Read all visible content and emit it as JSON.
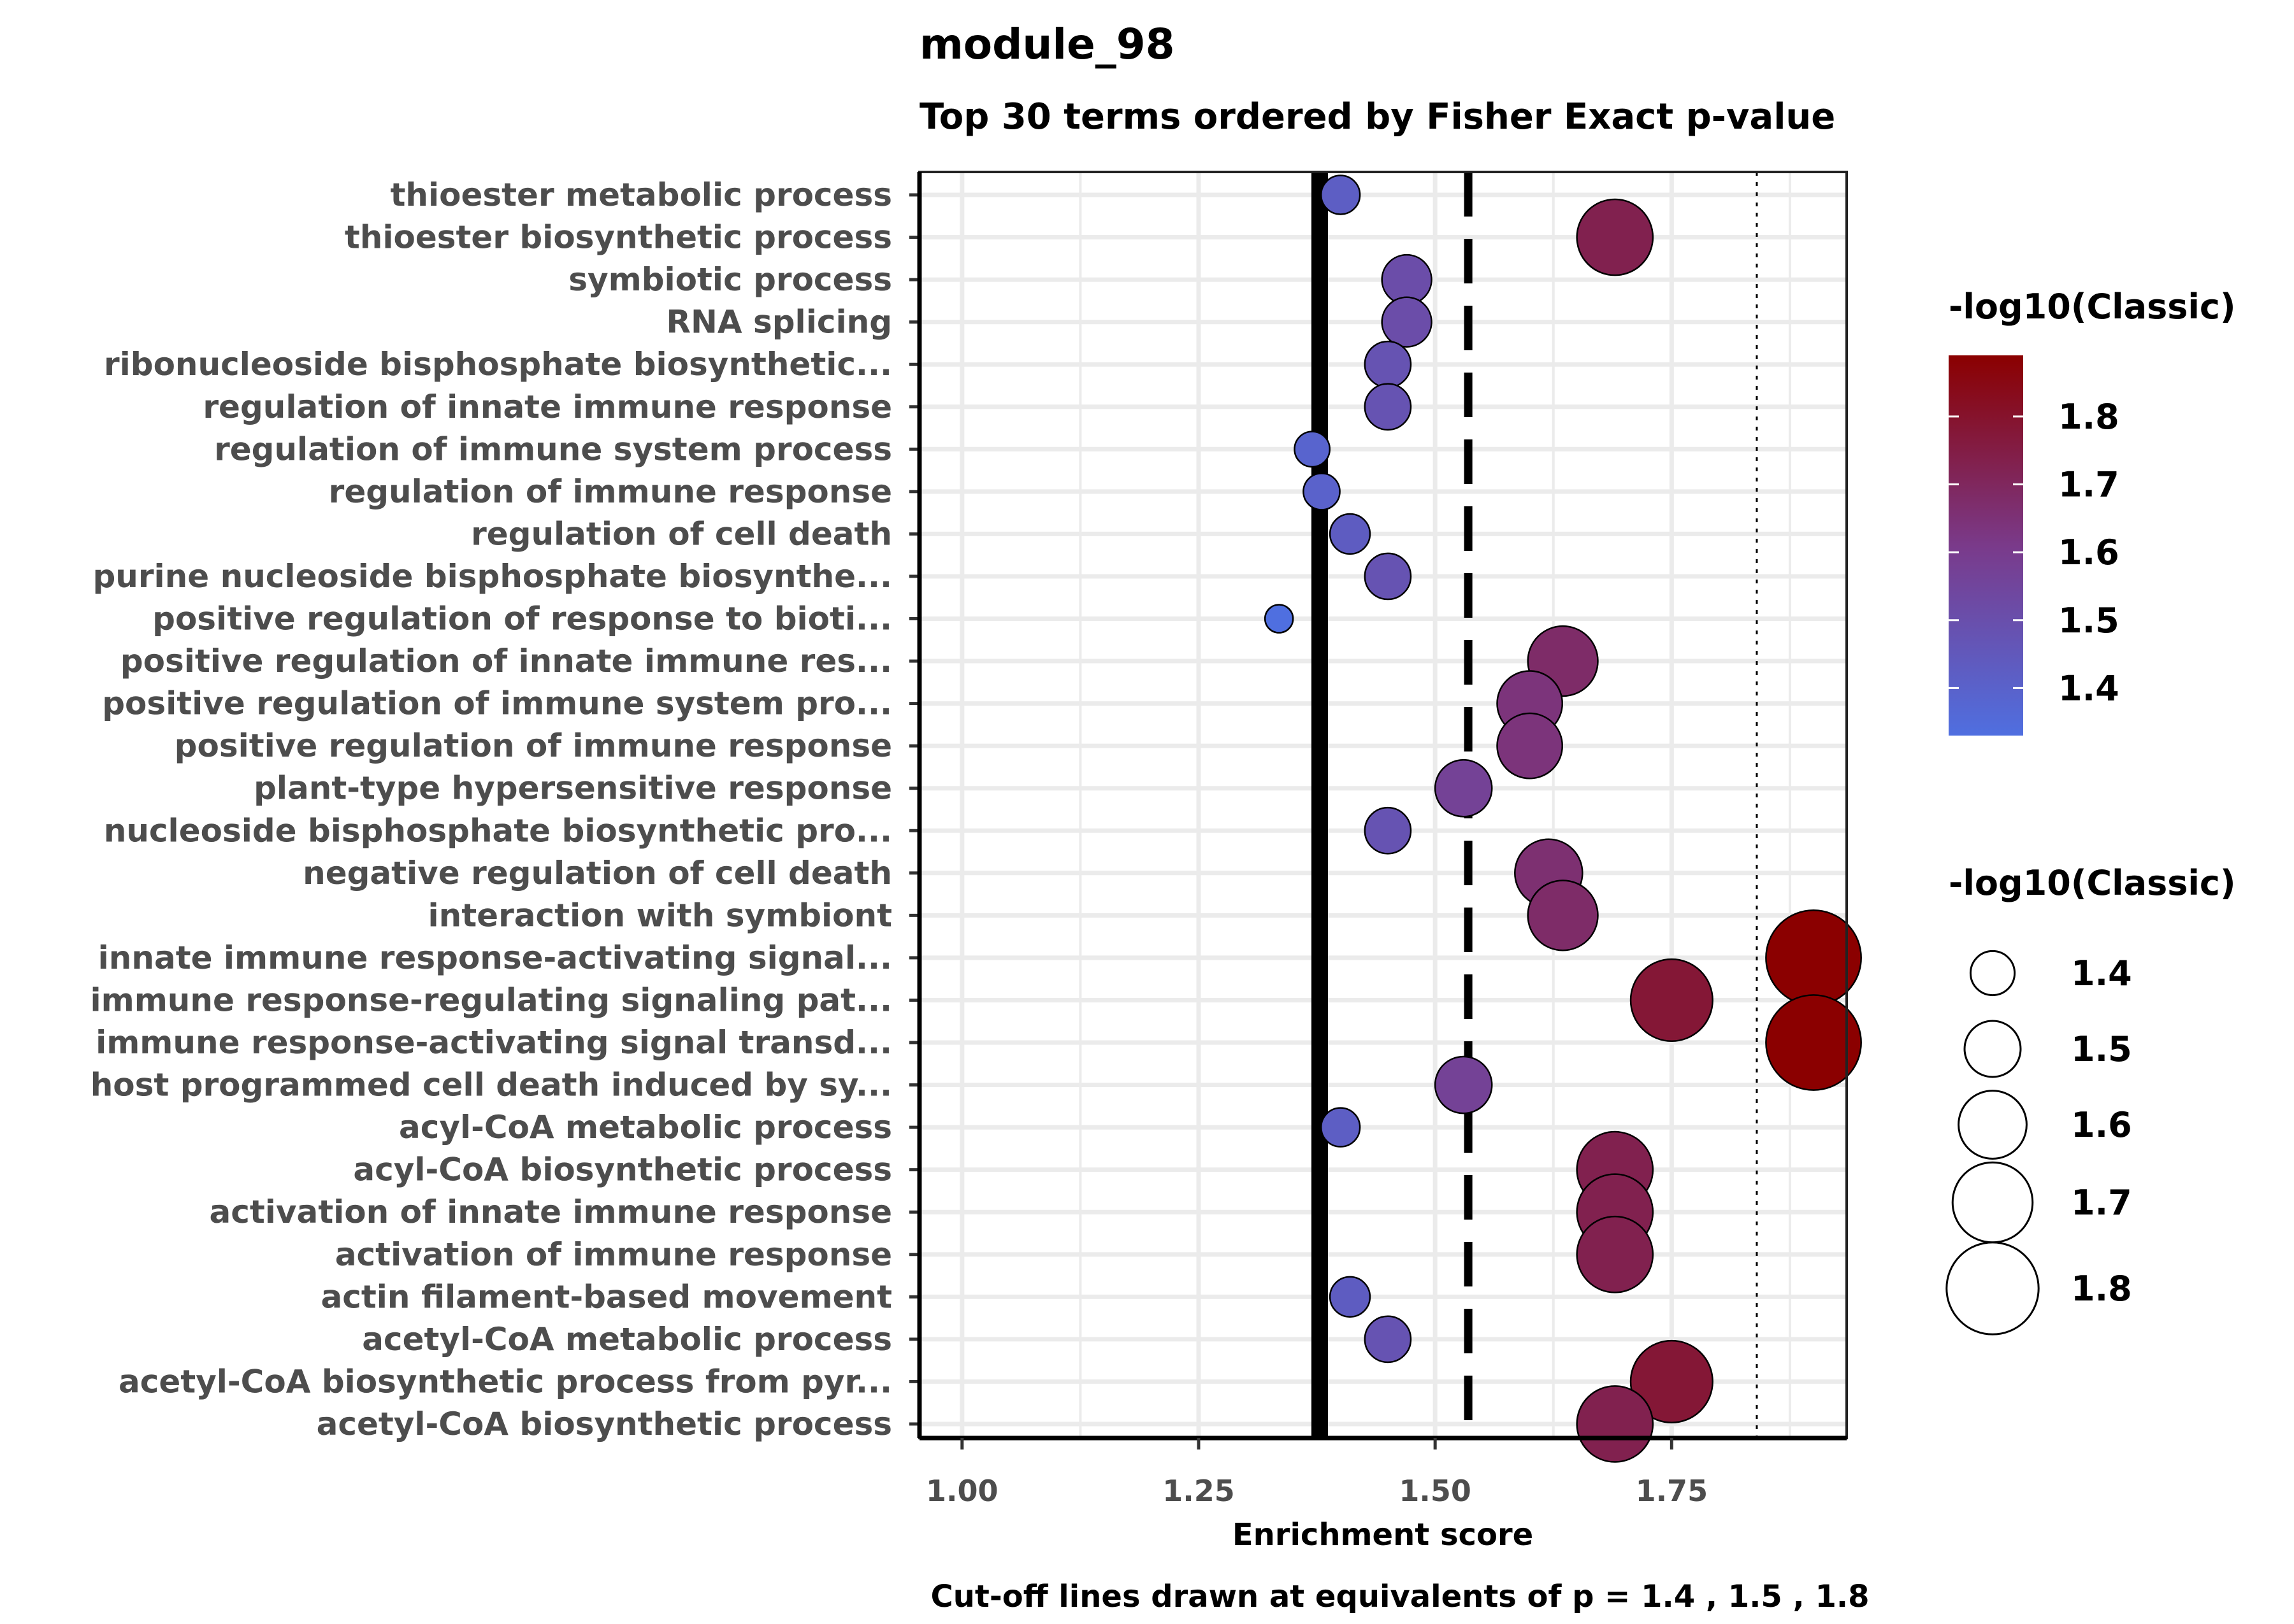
{
  "chart_data": {
    "type": "scatter",
    "title": "module_98",
    "subtitle": "Top 30 terms ordered by Fisher Exact p-value",
    "xlabel": "Enrichment score",
    "caption": "Cut-off lines drawn at equivalents of p = 1.4 , 1.5 , 1.8",
    "xlim": [
      0.955,
      1.935
    ],
    "x_ticks": [
      "1.00",
      "1.25",
      "1.50",
      "1.75"
    ],
    "x_tick_values": [
      1.0,
      1.25,
      1.5,
      1.75
    ],
    "grid": true,
    "legend_position": "right",
    "cutoff_lines": [
      {
        "x": 1.378,
        "style": "solid"
      },
      {
        "x": 1.535,
        "style": "dashed"
      },
      {
        "x": 1.84,
        "style": "dotted"
      }
    ],
    "color_legend": {
      "title": "-log10(Classic)",
      "ticks": [
        "1.8",
        "1.7",
        "1.6",
        "1.5",
        "1.4"
      ],
      "tick_values": [
        1.8,
        1.7,
        1.6,
        1.5,
        1.4
      ],
      "low_color": "#4f6fe0",
      "mid_color": "#7a3a8a",
      "high_color": "#8b0000",
      "range": [
        1.33,
        1.89
      ]
    },
    "size_legend": {
      "title": "-log10(Classic)",
      "labels": [
        "1.4",
        "1.5",
        "1.6",
        "1.7",
        "1.8"
      ],
      "values": [
        1.4,
        1.5,
        1.6,
        1.7,
        1.8
      ]
    },
    "points": [
      {
        "term": "thioester metabolic process",
        "x": 1.4,
        "value": 1.42
      },
      {
        "term": "thioester biosynthetic process",
        "x": 1.69,
        "value": 1.73
      },
      {
        "term": "symbiotic process",
        "x": 1.47,
        "value": 1.51
      },
      {
        "term": "RNA splicing",
        "x": 1.47,
        "value": 1.51
      },
      {
        "term": "ribonucleoside bisphosphate biosynthetic...",
        "x": 1.45,
        "value": 1.48
      },
      {
        "term": "regulation of innate immune response",
        "x": 1.45,
        "value": 1.48
      },
      {
        "term": "regulation of immune system process",
        "x": 1.37,
        "value": 1.39
      },
      {
        "term": "regulation of immune response",
        "x": 1.38,
        "value": 1.4
      },
      {
        "term": "regulation of cell death",
        "x": 1.41,
        "value": 1.43
      },
      {
        "term": "purine nucleoside bisphosphate biosynthe...",
        "x": 1.45,
        "value": 1.48
      },
      {
        "term": "positive regulation of response to bioti...",
        "x": 1.335,
        "value": 1.33
      },
      {
        "term": "positive regulation of innate immune res...",
        "x": 1.635,
        "value": 1.68
      },
      {
        "term": "positive regulation of immune system pro...",
        "x": 1.6,
        "value": 1.64
      },
      {
        "term": "positive regulation of immune response",
        "x": 1.6,
        "value": 1.64
      },
      {
        "term": "plant-type hypersensitive response",
        "x": 1.53,
        "value": 1.57
      },
      {
        "term": "nucleoside bisphosphate biosynthetic pro...",
        "x": 1.45,
        "value": 1.48
      },
      {
        "term": "negative regulation of cell death",
        "x": 1.62,
        "value": 1.66
      },
      {
        "term": "interaction with symbiont",
        "x": 1.635,
        "value": 1.68
      },
      {
        "term": "innate immune response-activating signal...",
        "x": 1.9,
        "value": 1.89
      },
      {
        "term": "immune response-regulating signaling pat...",
        "x": 1.75,
        "value": 1.78
      },
      {
        "term": "immune response-activating signal transd...",
        "x": 1.9,
        "value": 1.89
      },
      {
        "term": "host programmed cell death induced by sy...",
        "x": 1.53,
        "value": 1.57
      },
      {
        "term": "acyl-CoA metabolic process",
        "x": 1.4,
        "value": 1.42
      },
      {
        "term": "acyl-CoA biosynthetic process",
        "x": 1.69,
        "value": 1.73
      },
      {
        "term": "activation of innate immune response",
        "x": 1.69,
        "value": 1.73
      },
      {
        "term": "activation of immune response",
        "x": 1.69,
        "value": 1.73
      },
      {
        "term": "actin filament-based movement",
        "x": 1.41,
        "value": 1.43
      },
      {
        "term": "acetyl-CoA metabolic process",
        "x": 1.45,
        "value": 1.48
      },
      {
        "term": "acetyl-CoA biosynthetic process from pyr...",
        "x": 1.75,
        "value": 1.78
      },
      {
        "term": "acetyl-CoA biosynthetic process",
        "x": 1.69,
        "value": 1.73
      }
    ]
  }
}
